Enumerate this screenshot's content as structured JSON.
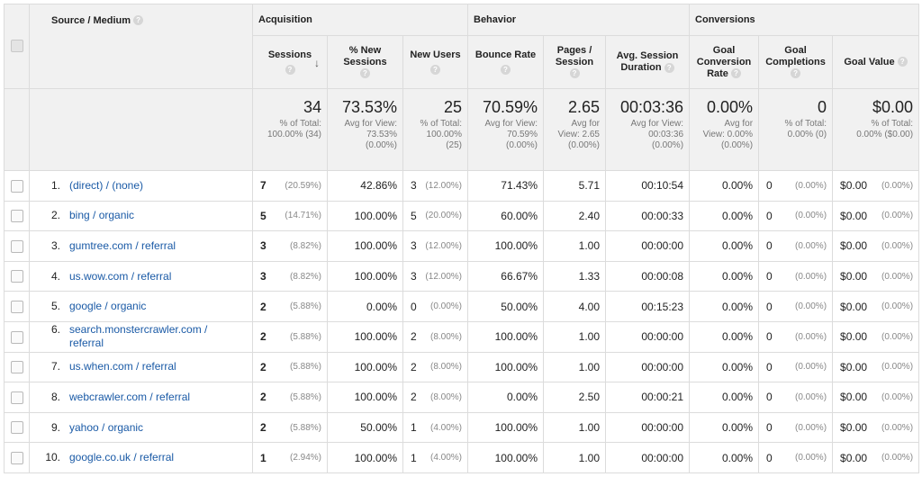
{
  "groups": {
    "acquisition": "Acquisition",
    "behavior": "Behavior",
    "conversions": "Conversions"
  },
  "columns": {
    "source_medium": "Source / Medium",
    "sessions": "Sessions",
    "pct_new_sessions_1": "% New",
    "pct_new_sessions_2": "Sessions",
    "new_users": "New Users",
    "bounce_rate": "Bounce Rate",
    "pages_session_1": "Pages /",
    "pages_session_2": "Session",
    "avg_session_duration_1": "Avg. Session",
    "avg_session_duration_2": "Duration",
    "goal_conv_rate_1": "Goal",
    "goal_conv_rate_2": "Conversion",
    "goal_conv_rate_3": "Rate",
    "goal_completions_1": "Goal",
    "goal_completions_2": "Completions",
    "goal_value": "Goal Value",
    "help_glyph": "?",
    "sort_glyph": "↓"
  },
  "totals": {
    "sessions": {
      "big": "34",
      "sub1": "% of Total:",
      "sub2": "100.00% (34)"
    },
    "pct_new_sessions": {
      "big": "73.53%",
      "sub1": "Avg for View:",
      "sub2": "73.53%",
      "sub3": "(0.00%)"
    },
    "new_users": {
      "big": "25",
      "sub1": "% of Total:",
      "sub2": "100.00%",
      "sub3": "(25)"
    },
    "bounce_rate": {
      "big": "70.59%",
      "sub1": "Avg for View:",
      "sub2": "70.59%",
      "sub3": "(0.00%)"
    },
    "pages_session": {
      "big": "2.65",
      "sub1": "Avg for",
      "sub2": "View: 2.65",
      "sub3": "(0.00%)"
    },
    "avg_session_duration": {
      "big": "00:03:36",
      "sub1": "Avg for View:",
      "sub2": "00:03:36",
      "sub3": "(0.00%)"
    },
    "goal_conv_rate": {
      "big": "0.00%",
      "sub1": "Avg for",
      "sub2": "View: 0.00%",
      "sub3": "(0.00%)"
    },
    "goal_completions": {
      "big": "0",
      "sub1": "% of Total:",
      "sub2": "0.00% (0)"
    },
    "goal_value": {
      "big": "$0.00",
      "sub1": "% of Total:",
      "sub2": "0.00% ($0.00)"
    }
  },
  "rows": [
    {
      "idx": "1.",
      "source": "(direct) / (none)",
      "sessions": "7",
      "sessions_pct": "(20.59%)",
      "pct_new": "42.86%",
      "new_users": "3",
      "new_users_pct": "(12.00%)",
      "bounce": "71.43%",
      "pages": "5.71",
      "duration": "00:10:54",
      "conv": "0.00%",
      "comp": "0",
      "comp_pct": "(0.00%)",
      "value": "$0.00",
      "value_pct": "(0.00%)"
    },
    {
      "idx": "2.",
      "source": "bing / organic",
      "sessions": "5",
      "sessions_pct": "(14.71%)",
      "pct_new": "100.00%",
      "new_users": "5",
      "new_users_pct": "(20.00%)",
      "bounce": "60.00%",
      "pages": "2.40",
      "duration": "00:00:33",
      "conv": "0.00%",
      "comp": "0",
      "comp_pct": "(0.00%)",
      "value": "$0.00",
      "value_pct": "(0.00%)"
    },
    {
      "idx": "3.",
      "source": "gumtree.com / referral",
      "sessions": "3",
      "sessions_pct": "(8.82%)",
      "pct_new": "100.00%",
      "new_users": "3",
      "new_users_pct": "(12.00%)",
      "bounce": "100.00%",
      "pages": "1.00",
      "duration": "00:00:00",
      "conv": "0.00%",
      "comp": "0",
      "comp_pct": "(0.00%)",
      "value": "$0.00",
      "value_pct": "(0.00%)"
    },
    {
      "idx": "4.",
      "source": "us.wow.com / referral",
      "sessions": "3",
      "sessions_pct": "(8.82%)",
      "pct_new": "100.00%",
      "new_users": "3",
      "new_users_pct": "(12.00%)",
      "bounce": "66.67%",
      "pages": "1.33",
      "duration": "00:00:08",
      "conv": "0.00%",
      "comp": "0",
      "comp_pct": "(0.00%)",
      "value": "$0.00",
      "value_pct": "(0.00%)"
    },
    {
      "idx": "5.",
      "source": "google / organic",
      "sessions": "2",
      "sessions_pct": "(5.88%)",
      "pct_new": "0.00%",
      "new_users": "0",
      "new_users_pct": "(0.00%)",
      "bounce": "50.00%",
      "pages": "4.00",
      "duration": "00:15:23",
      "conv": "0.00%",
      "comp": "0",
      "comp_pct": "(0.00%)",
      "value": "$0.00",
      "value_pct": "(0.00%)"
    },
    {
      "idx": "6.",
      "source": "search.monstercrawler.com /",
      "source2": "referral",
      "sessions": "2",
      "sessions_pct": "(5.88%)",
      "pct_new": "100.00%",
      "new_users": "2",
      "new_users_pct": "(8.00%)",
      "bounce": "100.00%",
      "pages": "1.00",
      "duration": "00:00:00",
      "conv": "0.00%",
      "comp": "0",
      "comp_pct": "(0.00%)",
      "value": "$0.00",
      "value_pct": "(0.00%)"
    },
    {
      "idx": "7.",
      "source": "us.when.com / referral",
      "sessions": "2",
      "sessions_pct": "(5.88%)",
      "pct_new": "100.00%",
      "new_users": "2",
      "new_users_pct": "(8.00%)",
      "bounce": "100.00%",
      "pages": "1.00",
      "duration": "00:00:00",
      "conv": "0.00%",
      "comp": "0",
      "comp_pct": "(0.00%)",
      "value": "$0.00",
      "value_pct": "(0.00%)"
    },
    {
      "idx": "8.",
      "source": "webcrawler.com / referral",
      "sessions": "2",
      "sessions_pct": "(5.88%)",
      "pct_new": "100.00%",
      "new_users": "2",
      "new_users_pct": "(8.00%)",
      "bounce": "0.00%",
      "pages": "2.50",
      "duration": "00:00:21",
      "conv": "0.00%",
      "comp": "0",
      "comp_pct": "(0.00%)",
      "value": "$0.00",
      "value_pct": "(0.00%)"
    },
    {
      "idx": "9.",
      "source": "yahoo / organic",
      "sessions": "2",
      "sessions_pct": "(5.88%)",
      "pct_new": "50.00%",
      "new_users": "1",
      "new_users_pct": "(4.00%)",
      "bounce": "100.00%",
      "pages": "1.00",
      "duration": "00:00:00",
      "conv": "0.00%",
      "comp": "0",
      "comp_pct": "(0.00%)",
      "value": "$0.00",
      "value_pct": "(0.00%)"
    },
    {
      "idx": "10.",
      "source": "google.co.uk / referral",
      "sessions": "1",
      "sessions_pct": "(2.94%)",
      "pct_new": "100.00%",
      "new_users": "1",
      "new_users_pct": "(4.00%)",
      "bounce": "100.00%",
      "pages": "1.00",
      "duration": "00:00:00",
      "conv": "0.00%",
      "comp": "0",
      "comp_pct": "(0.00%)",
      "value": "$0.00",
      "value_pct": "(0.00%)"
    }
  ]
}
